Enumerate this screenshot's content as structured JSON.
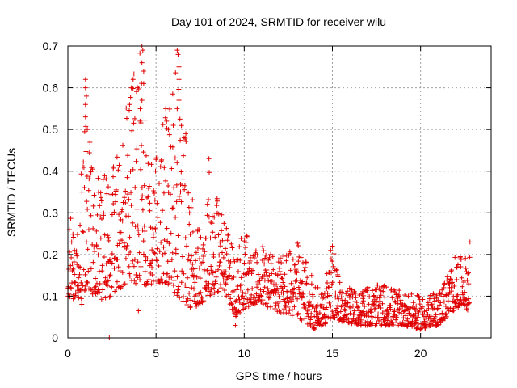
{
  "chart_data": {
    "type": "scatter",
    "title": "Day 101 of 2024, SRMTID for receiver wilu",
    "xlabel": "GPS time / hours",
    "ylabel": "SRMTID / TECUs",
    "xlim": [
      0,
      24
    ],
    "ylim": [
      0,
      0.7
    ],
    "x_ticks": [
      0,
      5,
      10,
      15,
      20
    ],
    "x_tick_labels": [
      "0",
      "5",
      "10",
      "15",
      "20"
    ],
    "y_ticks": [
      0,
      0.1,
      0.2,
      0.3,
      0.4,
      0.5,
      0.6,
      0.7
    ],
    "y_tick_labels": [
      "0",
      "0.1",
      "0.2",
      "0.3",
      "0.4",
      "0.5",
      "0.6",
      "0.7"
    ],
    "grid": true,
    "marker": "+",
    "series": [
      {
        "name": "SRMTID",
        "color": "#e00000",
        "envelope": [
          {
            "x": 0.0,
            "lo": 0.1,
            "hi": 0.3
          },
          {
            "x": 0.5,
            "lo": 0.09,
            "hi": 0.3
          },
          {
            "x": 0.8,
            "lo": 0.08,
            "hi": 0.43
          },
          {
            "x": 1.0,
            "lo": 0.12,
            "hi": 0.62
          },
          {
            "x": 1.5,
            "lo": 0.1,
            "hi": 0.38
          },
          {
            "x": 2.0,
            "lo": 0.09,
            "hi": 0.42
          },
          {
            "x": 2.5,
            "lo": 0.1,
            "hi": 0.4
          },
          {
            "x": 3.0,
            "lo": 0.12,
            "hi": 0.48
          },
          {
            "x": 3.5,
            "lo": 0.14,
            "hi": 0.62
          },
          {
            "x": 4.2,
            "lo": 0.12,
            "hi": 0.7
          },
          {
            "x": 4.8,
            "lo": 0.13,
            "hi": 0.4
          },
          {
            "x": 5.5,
            "lo": 0.13,
            "hi": 0.55
          },
          {
            "x": 6.2,
            "lo": 0.1,
            "hi": 0.69
          },
          {
            "x": 7.0,
            "lo": 0.07,
            "hi": 0.38
          },
          {
            "x": 7.5,
            "lo": 0.08,
            "hi": 0.25
          },
          {
            "x": 8.0,
            "lo": 0.1,
            "hi": 0.42
          },
          {
            "x": 8.5,
            "lo": 0.11,
            "hi": 0.35
          },
          {
            "x": 9.0,
            "lo": 0.1,
            "hi": 0.27
          },
          {
            "x": 9.5,
            "lo": 0.05,
            "hi": 0.2
          },
          {
            "x": 10.0,
            "lo": 0.07,
            "hi": 0.28
          },
          {
            "x": 10.5,
            "lo": 0.08,
            "hi": 0.2
          },
          {
            "x": 11.0,
            "lo": 0.08,
            "hi": 0.23
          },
          {
            "x": 12.0,
            "lo": 0.06,
            "hi": 0.2
          },
          {
            "x": 13.0,
            "lo": 0.05,
            "hi": 0.23
          },
          {
            "x": 14.0,
            "lo": 0.02,
            "hi": 0.14
          },
          {
            "x": 14.5,
            "lo": 0.03,
            "hi": 0.12
          },
          {
            "x": 15.0,
            "lo": 0.05,
            "hi": 0.22
          },
          {
            "x": 15.5,
            "lo": 0.04,
            "hi": 0.12
          },
          {
            "x": 16.5,
            "lo": 0.03,
            "hi": 0.12
          },
          {
            "x": 18.0,
            "lo": 0.03,
            "hi": 0.13
          },
          {
            "x": 19.0,
            "lo": 0.03,
            "hi": 0.11
          },
          {
            "x": 20.0,
            "lo": 0.02,
            "hi": 0.1
          },
          {
            "x": 21.0,
            "lo": 0.03,
            "hi": 0.11
          },
          {
            "x": 22.0,
            "lo": 0.07,
            "hi": 0.2
          },
          {
            "x": 22.5,
            "lo": 0.08,
            "hi": 0.19
          },
          {
            "x": 22.8,
            "lo": 0.05,
            "hi": 0.22
          }
        ],
        "spikes": [
          {
            "x": 1.0,
            "y": 0.62
          },
          {
            "x": 1.0,
            "y": 0.6
          },
          {
            "x": 1.05,
            "y": 0.58
          },
          {
            "x": 1.0,
            "y": 0.56
          },
          {
            "x": 1.0,
            "y": 0.53
          },
          {
            "x": 1.1,
            "y": 0.5
          },
          {
            "x": 3.7,
            "y": 0.62
          },
          {
            "x": 3.6,
            "y": 0.6
          },
          {
            "x": 3.5,
            "y": 0.56
          },
          {
            "x": 4.2,
            "y": 0.7
          },
          {
            "x": 4.25,
            "y": 0.69
          },
          {
            "x": 4.2,
            "y": 0.66
          },
          {
            "x": 4.3,
            "y": 0.64
          },
          {
            "x": 4.3,
            "y": 0.61
          },
          {
            "x": 4.2,
            "y": 0.57
          },
          {
            "x": 4.1,
            "y": 0.55
          },
          {
            "x": 5.55,
            "y": 0.55
          },
          {
            "x": 5.6,
            "y": 0.52
          },
          {
            "x": 5.7,
            "y": 0.5
          },
          {
            "x": 6.2,
            "y": 0.69
          },
          {
            "x": 6.25,
            "y": 0.68
          },
          {
            "x": 6.3,
            "y": 0.65
          },
          {
            "x": 6.3,
            "y": 0.62
          },
          {
            "x": 6.3,
            "y": 0.57
          },
          {
            "x": 6.2,
            "y": 0.55
          },
          {
            "x": 2.35,
            "y": 0.0
          },
          {
            "x": 4.0,
            "y": 0.065
          },
          {
            "x": 9.5,
            "y": 0.03
          },
          {
            "x": 14.9,
            "y": 0.21
          },
          {
            "x": 15.0,
            "y": 0.22
          },
          {
            "x": 22.8,
            "y": 0.23
          },
          {
            "x": 8.0,
            "y": 0.43
          }
        ]
      }
    ]
  }
}
